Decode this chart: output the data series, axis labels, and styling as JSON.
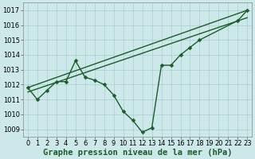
{
  "title": "",
  "xlabel": "Graphe pression niveau de la mer (hPa)",
  "ylabel": "",
  "bg_color": "#cce8e8",
  "grid_color": "#aacfcf",
  "line_color": "#1a5c2a",
  "xlim": [
    -0.5,
    23.5
  ],
  "ylim": [
    1008.5,
    1017.5
  ],
  "yticks": [
    1009,
    1010,
    1011,
    1012,
    1013,
    1014,
    1015,
    1016,
    1017
  ],
  "xticks": [
    0,
    1,
    2,
    3,
    4,
    5,
    6,
    7,
    8,
    9,
    10,
    11,
    12,
    13,
    14,
    15,
    16,
    17,
    18,
    19,
    20,
    21,
    22,
    23
  ],
  "line1_x": [
    0,
    1,
    2,
    3,
    4,
    5,
    6,
    7,
    8,
    9,
    10,
    11,
    12,
    13,
    14,
    15,
    16,
    17,
    18,
    22,
    23
  ],
  "line1_y": [
    1011.8,
    1011.0,
    1011.6,
    1012.2,
    1012.2,
    1013.6,
    1012.5,
    1012.3,
    1012.0,
    1011.3,
    1010.2,
    1009.6,
    1008.8,
    1009.1,
    1013.3,
    1013.3,
    1014.0,
    1014.5,
    1015.0,
    1016.3,
    1017.0
  ],
  "line2_x": [
    0,
    23
  ],
  "line2_y": [
    1011.8,
    1017.0
  ],
  "line3_x": [
    0,
    23
  ],
  "line3_y": [
    1011.5,
    1016.5
  ],
  "marker": "D",
  "markersize": 2.5,
  "linewidth": 1.0,
  "tick_fontsize": 6.0,
  "xlabel_fontsize": 7.5,
  "fig_width": 3.2,
  "fig_height": 2.0,
  "dpi": 100
}
